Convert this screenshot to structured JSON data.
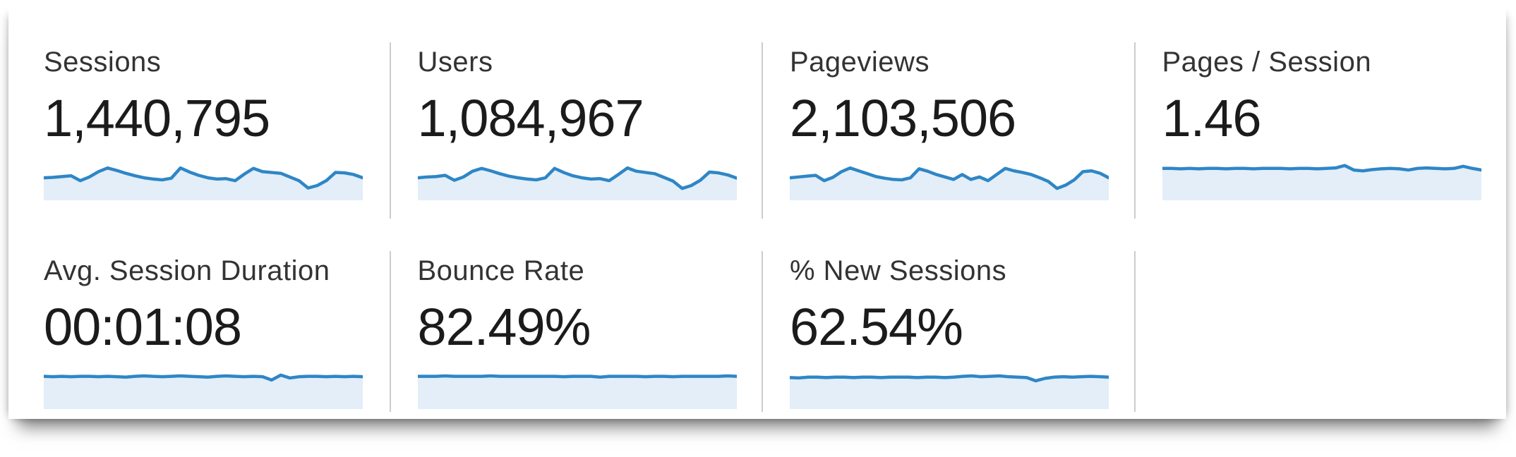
{
  "panel": {
    "colors": {
      "spark_line": "#2e86c6",
      "spark_fill": "#e3eef8",
      "label_text": "#333333",
      "value_text": "#1b1b1b",
      "divider": "#cccccc",
      "panel_background": "#ffffff"
    },
    "cards": [
      {
        "id": "sessions",
        "label": "Sessions",
        "value": "1,440,795",
        "spark_index": 0
      },
      {
        "id": "users",
        "label": "Users",
        "value": "1,084,967",
        "spark_index": 1
      },
      {
        "id": "pageviews",
        "label": "Pageviews",
        "value": "2,103,506",
        "spark_index": 2
      },
      {
        "id": "pages-per-session",
        "label": "Pages / Session",
        "value": "1.46",
        "spark_index": 3
      },
      {
        "id": "avg-session-duration",
        "label": "Avg. Session Duration",
        "value": "00:01:08",
        "spark_index": 4
      },
      {
        "id": "bounce-rate",
        "label": "Bounce Rate",
        "value": "82.49%",
        "spark_index": 5
      },
      {
        "id": "percent-new-sessions",
        "label": "% New Sessions",
        "value": "62.54%",
        "spark_index": 6
      }
    ]
  },
  "chart_data": [
    {
      "type": "area",
      "metric": "Sessions",
      "summary_value": "1,440,795",
      "x_axis": "hidden",
      "y_axis": "hidden",
      "values": [
        0.55,
        0.56,
        0.58,
        0.6,
        0.48,
        0.57,
        0.7,
        0.79,
        0.73,
        0.66,
        0.6,
        0.55,
        0.52,
        0.5,
        0.54,
        0.79,
        0.69,
        0.61,
        0.55,
        0.52,
        0.53,
        0.48,
        0.64,
        0.78,
        0.7,
        0.68,
        0.66,
        0.57,
        0.48,
        0.3,
        0.36,
        0.48,
        0.68,
        0.67,
        0.63,
        0.55
      ]
    },
    {
      "type": "area",
      "metric": "Users",
      "summary_value": "1,084,967",
      "x_axis": "hidden",
      "y_axis": "hidden",
      "values": [
        0.55,
        0.57,
        0.58,
        0.61,
        0.49,
        0.57,
        0.71,
        0.78,
        0.72,
        0.65,
        0.59,
        0.55,
        0.52,
        0.5,
        0.55,
        0.78,
        0.68,
        0.6,
        0.55,
        0.52,
        0.53,
        0.48,
        0.63,
        0.79,
        0.71,
        0.68,
        0.65,
        0.56,
        0.47,
        0.29,
        0.36,
        0.49,
        0.69,
        0.67,
        0.62,
        0.54
      ]
    },
    {
      "type": "area",
      "metric": "Pageviews",
      "summary_value": "2,103,506",
      "x_axis": "hidden",
      "y_axis": "hidden",
      "values": [
        0.55,
        0.57,
        0.59,
        0.61,
        0.48,
        0.56,
        0.7,
        0.79,
        0.72,
        0.65,
        0.58,
        0.54,
        0.51,
        0.5,
        0.55,
        0.77,
        0.71,
        0.63,
        0.57,
        0.51,
        0.63,
        0.51,
        0.57,
        0.48,
        0.63,
        0.78,
        0.72,
        0.68,
        0.63,
        0.55,
        0.46,
        0.29,
        0.37,
        0.5,
        0.7,
        0.72,
        0.66,
        0.55
      ]
    },
    {
      "type": "area",
      "metric": "Pages / Session",
      "summary_value": "1.46",
      "x_axis": "hidden",
      "y_axis": "hidden",
      "values": [
        0.78,
        0.78,
        0.77,
        0.78,
        0.77,
        0.78,
        0.78,
        0.77,
        0.78,
        0.78,
        0.77,
        0.78,
        0.78,
        0.78,
        0.77,
        0.78,
        0.78,
        0.77,
        0.78,
        0.79,
        0.85,
        0.74,
        0.72,
        0.75,
        0.77,
        0.78,
        0.77,
        0.74,
        0.78,
        0.79,
        0.78,
        0.77,
        0.78,
        0.83,
        0.78,
        0.74
      ]
    },
    {
      "type": "area",
      "metric": "Avg. Session Duration",
      "summary_value": "00:01:08",
      "x_axis": "hidden",
      "y_axis": "hidden",
      "values": [
        0.8,
        0.79,
        0.8,
        0.79,
        0.8,
        0.8,
        0.79,
        0.8,
        0.79,
        0.78,
        0.8,
        0.81,
        0.8,
        0.79,
        0.8,
        0.81,
        0.8,
        0.79,
        0.78,
        0.8,
        0.81,
        0.8,
        0.79,
        0.8,
        0.79,
        0.71,
        0.83,
        0.76,
        0.79,
        0.8,
        0.8,
        0.79,
        0.8,
        0.79,
        0.8,
        0.79
      ]
    },
    {
      "type": "area",
      "metric": "Bounce Rate",
      "summary_value": "82.49%",
      "x_axis": "hidden",
      "y_axis": "hidden",
      "values": [
        0.8,
        0.8,
        0.8,
        0.81,
        0.8,
        0.8,
        0.8,
        0.8,
        0.81,
        0.8,
        0.8,
        0.8,
        0.8,
        0.8,
        0.8,
        0.8,
        0.79,
        0.8,
        0.8,
        0.8,
        0.78,
        0.8,
        0.8,
        0.8,
        0.8,
        0.79,
        0.8,
        0.8,
        0.79,
        0.8,
        0.8,
        0.8,
        0.8,
        0.8,
        0.81,
        0.8
      ]
    },
    {
      "type": "area",
      "metric": "% New Sessions",
      "summary_value": "62.54%",
      "x_axis": "hidden",
      "y_axis": "hidden",
      "values": [
        0.77,
        0.76,
        0.78,
        0.78,
        0.77,
        0.78,
        0.78,
        0.77,
        0.78,
        0.78,
        0.77,
        0.78,
        0.78,
        0.78,
        0.77,
        0.78,
        0.78,
        0.77,
        0.78,
        0.8,
        0.81,
        0.79,
        0.8,
        0.81,
        0.79,
        0.78,
        0.77,
        0.69,
        0.75,
        0.78,
        0.79,
        0.78,
        0.79,
        0.8,
        0.79,
        0.78
      ]
    }
  ]
}
